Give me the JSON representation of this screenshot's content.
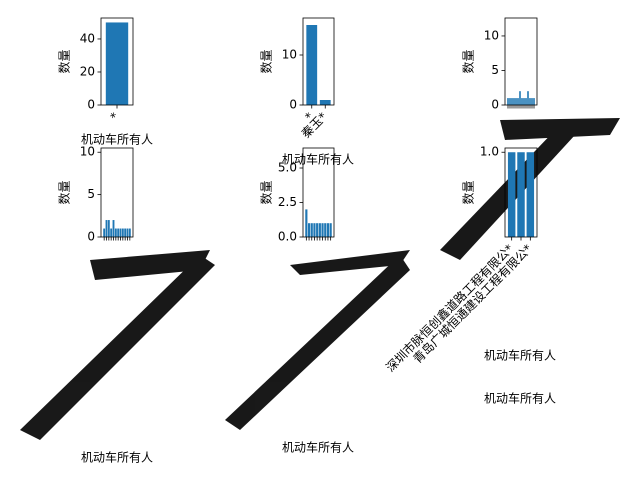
{
  "chart_data": [
    {
      "type": "bar",
      "categories": [
        "*"
      ],
      "values": [
        50
      ],
      "color": "#1f77b4",
      "ylim": [
        0,
        52.7
      ],
      "yticks": [
        0,
        20,
        40
      ],
      "xlabel": "机动车所有人",
      "ylabel": "数量"
    },
    {
      "type": "bar",
      "categories": [
        "*",
        "秦玉*"
      ],
      "values": [
        16,
        1
      ],
      "color": "#1f77b4",
      "ylim": [
        0,
        17.4
      ],
      "yticks": [
        0,
        10
      ],
      "xlabel": "机动车所有人",
      "ylabel": "数量"
    },
    {
      "type": "bar",
      "categories": [
        null,
        null,
        null,
        null,
        null,
        null,
        null,
        null,
        null,
        null,
        null,
        null,
        null,
        null
      ],
      "values": [
        1,
        1,
        1,
        1,
        1,
        1,
        2,
        1,
        1,
        1,
        2,
        1,
        1,
        1
      ],
      "color": "#1f77b4",
      "ylim": [
        0,
        12.6
      ],
      "yticks": [
        0,
        5,
        10
      ],
      "xlabel": "机动车所有人",
      "ylabel": "数量"
    },
    {
      "type": "bar",
      "categories": [
        null,
        null,
        null,
        null,
        null,
        null,
        null,
        null,
        null,
        null,
        null,
        null
      ],
      "values": [
        1,
        2,
        2,
        1,
        2,
        1,
        1,
        1,
        1,
        1,
        1,
        1
      ],
      "color": "#1f77b4",
      "ylim": [
        0,
        10.5
      ],
      "yticks": [
        0,
        5,
        10
      ],
      "xlabel": "机动车所有人",
      "ylabel": "数量"
    },
    {
      "type": "bar",
      "categories": [
        null,
        null,
        null,
        null,
        null,
        null,
        null,
        null,
        null,
        null
      ],
      "values": [
        2,
        1,
        1,
        1,
        1,
        1,
        1,
        1,
        1,
        1
      ],
      "color": "#1f77b4",
      "ylim": [
        0,
        6.45
      ],
      "yticks": [
        {
          "value": 0,
          "label": "0.0"
        },
        {
          "value": 2.5,
          "label": "2.5"
        },
        {
          "value": 5,
          "label": "5.0"
        }
      ],
      "xlabel": "机动车所有人",
      "ylabel": "数量"
    },
    {
      "type": "bar",
      "categories": [
        "深圳市脉恒创鑫道路工程有限公*",
        null,
        "青岛广城恒通建设工程有限公*"
      ],
      "values": [
        1,
        1,
        1
      ],
      "color": "#1f77b4",
      "ylim": [
        0,
        1.05
      ],
      "yticks": [
        {
          "value": 1,
          "label": "1.0"
        }
      ],
      "xlabel": "机动车所有人",
      "ylabel": "数量"
    }
  ]
}
